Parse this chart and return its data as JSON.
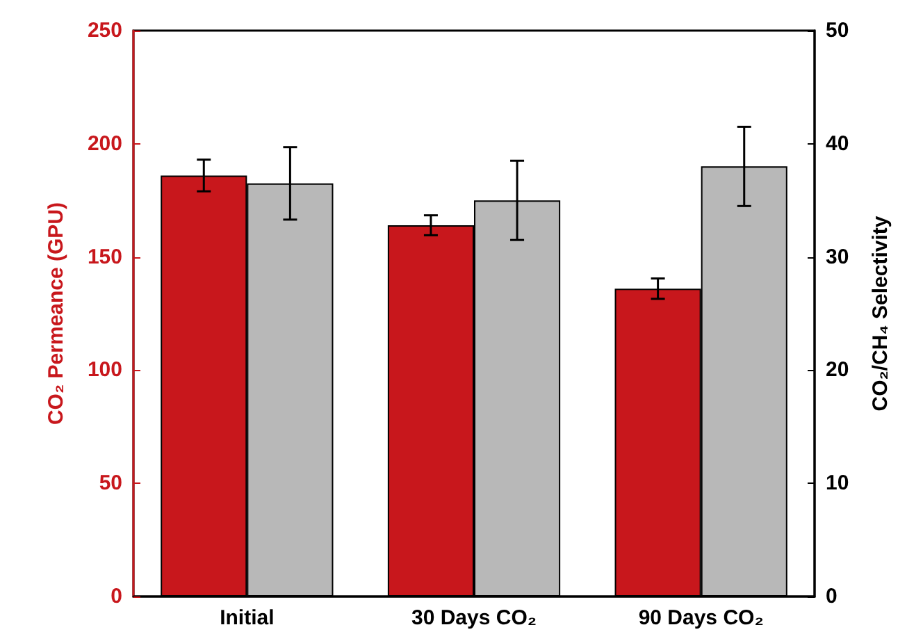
{
  "chart_data": {
    "type": "bar",
    "ylabel": "CO₂ Permeance (GPU)",
    "y2label": "CO₂/CH₄ Selectivity",
    "categories": [
      "Initial",
      "30 Days CO₂",
      "90 Days CO₂"
    ],
    "series": [
      {
        "color": "#c8171c",
        "values": [
          186,
          164,
          136
        ],
        "errors": [
          7,
          4.4,
          4.5
        ]
      },
      {
        "color": "#b8b8b8",
        "values": [
          36.5,
          35.0,
          38.0
        ],
        "errors": [
          3.2,
          3.5,
          3.5
        ],
        "axis": "y2"
      }
    ],
    "ylim": [
      0,
      250
    ],
    "yticks": [
      0,
      50,
      100,
      150,
      200,
      250
    ],
    "y2lim": [
      0,
      50
    ],
    "y2ticks": [
      0,
      10,
      20,
      30,
      40,
      50
    ],
    "grid": false
  }
}
